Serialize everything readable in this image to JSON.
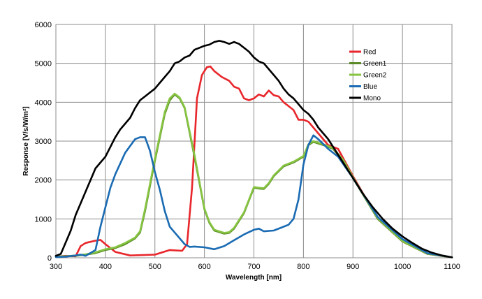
{
  "chart_data": {
    "type": "line",
    "title": "",
    "xlabel": "Wavelength [nm]",
    "ylabel": "Response [V/s/W/m²]",
    "xlim": [
      300,
      1100
    ],
    "ylim": [
      0,
      6000
    ],
    "xticks": [
      300,
      400,
      500,
      600,
      700,
      800,
      900,
      1000,
      1100
    ],
    "yticks": [
      0,
      1000,
      2000,
      3000,
      4000,
      5000,
      6000
    ],
    "grid": true,
    "legend_position": "top-right",
    "series": [
      {
        "name": "Red",
        "color": "#e8262b",
        "x": [
          300,
          320,
          340,
          350,
          360,
          380,
          390,
          400,
          420,
          450,
          500,
          530,
          555,
          565,
          575,
          585,
          595,
          605,
          612,
          620,
          635,
          650,
          660,
          670,
          680,
          690,
          700,
          710,
          720,
          730,
          740,
          750,
          760,
          770,
          780,
          790,
          800,
          810,
          830,
          850,
          870,
          900,
          950,
          1000,
          1050,
          1100
        ],
        "y": [
          30,
          50,
          40,
          300,
          380,
          440,
          460,
          350,
          150,
          60,
          80,
          200,
          180,
          350,
          1800,
          4100,
          4700,
          4900,
          4920,
          4800,
          4650,
          4550,
          4400,
          4350,
          4100,
          4050,
          4100,
          4200,
          4150,
          4300,
          4180,
          4150,
          4000,
          3900,
          3800,
          3550,
          3550,
          3500,
          3200,
          2900,
          2800,
          2100,
          1000,
          420,
          100,
          10
        ]
      },
      {
        "name": "Green1",
        "color": "#5a8a26",
        "x": [
          300,
          320,
          340,
          360,
          380,
          400,
          420,
          440,
          460,
          470,
          480,
          500,
          520,
          530,
          540,
          550,
          560,
          580,
          600,
          610,
          620,
          640,
          650,
          660,
          680,
          700,
          710,
          720,
          730,
          740,
          760,
          780,
          800,
          810,
          820,
          840,
          860,
          880,
          900,
          950,
          1000,
          1050,
          1100
        ],
        "y": [
          30,
          40,
          50,
          80,
          120,
          200,
          250,
          350,
          500,
          650,
          1200,
          2500,
          3700,
          4050,
          4200,
          4100,
          3850,
          2600,
          1250,
          900,
          700,
          620,
          640,
          750,
          1150,
          1800,
          1780,
          1770,
          1900,
          2100,
          2350,
          2450,
          2600,
          2900,
          2980,
          2900,
          2800,
          2500,
          2050,
          1000,
          420,
          100,
          10
        ]
      },
      {
        "name": "Green2",
        "color": "#86c441",
        "x": [
          300,
          320,
          340,
          360,
          380,
          400,
          420,
          440,
          460,
          470,
          480,
          500,
          520,
          530,
          540,
          550,
          560,
          580,
          600,
          610,
          620,
          640,
          650,
          660,
          680,
          700,
          710,
          720,
          730,
          740,
          760,
          780,
          800,
          810,
          820,
          840,
          860,
          880,
          900,
          950,
          1000,
          1050,
          1100
        ],
        "y": [
          30,
          40,
          60,
          90,
          140,
          220,
          270,
          380,
          520,
          680,
          1250,
          2550,
          3750,
          4100,
          4220,
          4120,
          3870,
          2650,
          1270,
          920,
          720,
          640,
          660,
          770,
          1170,
          1820,
          1800,
          1790,
          1920,
          2120,
          2370,
          2470,
          2620,
          2920,
          3000,
          2920,
          2820,
          2520,
          2070,
          1020,
          430,
          110,
          12
        ]
      },
      {
        "name": "Blue",
        "color": "#1a6bb3",
        "x": [
          300,
          320,
          340,
          350,
          360,
          380,
          390,
          400,
          410,
          420,
          440,
          460,
          470,
          480,
          490,
          500,
          510,
          520,
          530,
          540,
          560,
          570,
          580,
          600,
          620,
          640,
          660,
          680,
          700,
          710,
          720,
          740,
          760,
          770,
          780,
          790,
          800,
          810,
          820,
          830,
          850,
          870,
          900,
          950,
          1000,
          1050,
          1100
        ],
        "y": [
          20,
          30,
          60,
          80,
          50,
          200,
          800,
          1300,
          1800,
          2150,
          2700,
          3050,
          3100,
          3100,
          2750,
          2200,
          1750,
          1200,
          800,
          650,
          350,
          280,
          290,
          270,
          220,
          300,
          450,
          600,
          720,
          750,
          680,
          700,
          800,
          850,
          1000,
          1500,
          2400,
          2900,
          3150,
          3050,
          2800,
          2600,
          2050,
          1050,
          480,
          120,
          10
        ]
      },
      {
        "name": "Mono",
        "color": "#000000",
        "x": [
          300,
          310,
          320,
          330,
          340,
          350,
          360,
          370,
          380,
          390,
          400,
          410,
          420,
          430,
          440,
          450,
          460,
          470,
          480,
          490,
          500,
          510,
          520,
          530,
          540,
          550,
          560,
          570,
          580,
          590,
          600,
          610,
          620,
          630,
          640,
          650,
          660,
          670,
          680,
          690,
          700,
          710,
          720,
          730,
          740,
          750,
          760,
          770,
          780,
          790,
          800,
          810,
          820,
          830,
          840,
          850,
          860,
          870,
          880,
          890,
          900,
          920,
          940,
          960,
          980,
          1000,
          1020,
          1040,
          1060,
          1080,
          1100
        ],
        "y": [
          50,
          100,
          400,
          700,
          1100,
          1400,
          1700,
          2000,
          2300,
          2450,
          2600,
          2850,
          3100,
          3300,
          3450,
          3600,
          3850,
          4050,
          4150,
          4250,
          4350,
          4500,
          4650,
          4800,
          5000,
          5050,
          5150,
          5200,
          5350,
          5400,
          5450,
          5480,
          5550,
          5580,
          5550,
          5500,
          5550,
          5500,
          5400,
          5300,
          5150,
          5050,
          5000,
          4850,
          4700,
          4550,
          4350,
          4200,
          4100,
          3950,
          3800,
          3700,
          3550,
          3350,
          3200,
          3050,
          2850,
          2650,
          2450,
          2250,
          2050,
          1650,
          1300,
          1000,
          750,
          550,
          380,
          230,
          130,
          60,
          10
        ]
      }
    ]
  }
}
